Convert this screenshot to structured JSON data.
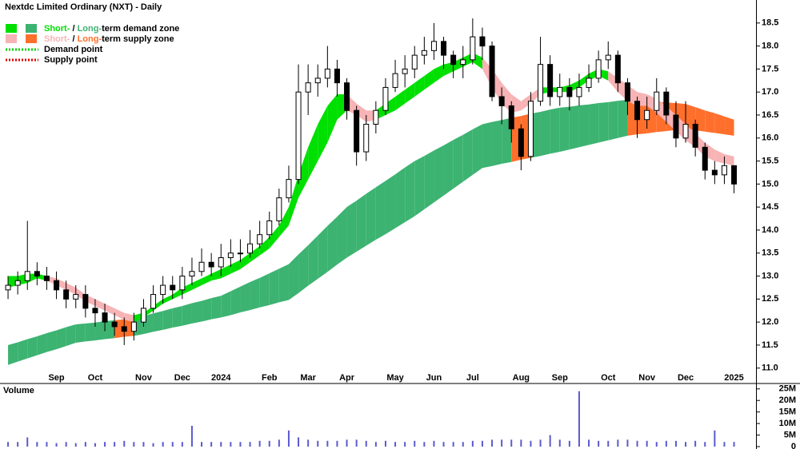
{
  "chart_data": [
    {
      "type": "candlestick",
      "title": "Nextdc Limited Ordinary (NXT) - Daily",
      "categories": [
        null,
        null,
        null,
        null,
        null,
        "Sep",
        null,
        null,
        null,
        "Oct",
        null,
        null,
        null,
        null,
        "Nov",
        null,
        null,
        null,
        "Dec",
        null,
        null,
        null,
        "2024",
        null,
        null,
        null,
        null,
        "Feb",
        null,
        null,
        null,
        "Mar",
        null,
        null,
        null,
        "Apr",
        null,
        null,
        null,
        null,
        "May",
        null,
        null,
        null,
        "Jun",
        null,
        null,
        null,
        "Jul",
        null,
        null,
        null,
        null,
        "Aug",
        null,
        null,
        null,
        "Sep",
        null,
        null,
        null,
        null,
        "Oct",
        null,
        null,
        null,
        "Nov",
        null,
        null,
        null,
        "Dec",
        null,
        null,
        null,
        null,
        "2025"
      ],
      "open": [
        12.7,
        12.8,
        12.9,
        13.1,
        13.0,
        12.9,
        12.7,
        12.5,
        12.6,
        12.3,
        12.2,
        12.0,
        11.9,
        11.8,
        12.0,
        12.3,
        12.6,
        12.8,
        12.7,
        13.0,
        13.1,
        13.3,
        13.2,
        13.4,
        13.5,
        13.5,
        13.7,
        13.9,
        14.2,
        14.7,
        15.1,
        17.0,
        17.2,
        17.3,
        17.5,
        17.2,
        16.6,
        15.7,
        16.3,
        16.6,
        17.1,
        17.4,
        17.5,
        17.8,
        17.9,
        18.1,
        17.8,
        17.6,
        17.7,
        18.2,
        18.0,
        16.9,
        16.7,
        16.2,
        15.6,
        16.8,
        17.6,
        16.9,
        17.1,
        16.9,
        17.1,
        17.3,
        17.7,
        17.8,
        17.2,
        16.8,
        16.4,
        16.6,
        17.0,
        16.5,
        16.0,
        16.3,
        15.8,
        15.3,
        15.2,
        15.4
      ],
      "high": [
        13.0,
        13.1,
        14.2,
        13.3,
        13.2,
        13.1,
        12.9,
        12.8,
        12.8,
        12.5,
        12.4,
        12.2,
        12.1,
        12.2,
        12.5,
        12.8,
        13.0,
        13.0,
        13.2,
        13.4,
        13.6,
        13.5,
        13.7,
        13.8,
        13.8,
        14.0,
        14.2,
        14.4,
        14.9,
        15.4,
        17.6,
        17.6,
        17.6,
        18.0,
        17.7,
        17.3,
        16.7,
        16.5,
        16.8,
        17.3,
        17.7,
        17.8,
        18.0,
        18.2,
        18.5,
        18.2,
        17.9,
        18.0,
        18.6,
        18.4,
        18.1,
        17.1,
        16.8,
        16.3,
        17.0,
        18.2,
        17.8,
        17.4,
        17.3,
        17.4,
        17.6,
        17.9,
        18.1,
        17.9,
        17.3,
        16.9,
        16.9,
        17.3,
        17.1,
        16.8,
        16.8,
        16.4,
        15.9,
        15.5,
        15.6,
        15.4
      ],
      "low": [
        12.5,
        12.6,
        12.7,
        12.8,
        12.7,
        12.5,
        12.3,
        12.3,
        12.1,
        11.9,
        11.8,
        11.7,
        11.5,
        11.6,
        11.9,
        12.2,
        12.4,
        12.5,
        12.5,
        12.8,
        13.0,
        13.0,
        13.0,
        13.2,
        13.3,
        13.4,
        13.6,
        13.8,
        14.1,
        14.6,
        15.0,
        16.5,
        16.9,
        17.1,
        16.9,
        16.4,
        15.4,
        15.5,
        16.1,
        16.5,
        17.0,
        17.1,
        17.3,
        17.6,
        17.7,
        17.5,
        17.3,
        17.3,
        17.6,
        17.7,
        16.8,
        16.3,
        15.9,
        15.3,
        15.5,
        16.7,
        16.7,
        16.7,
        16.6,
        16.7,
        17.0,
        17.2,
        17.5,
        17.0,
        16.5,
        16.0,
        16.2,
        16.5,
        16.3,
        15.8,
        15.9,
        15.6,
        15.1,
        15.0,
        15.0,
        14.8
      ],
      "close": [
        12.8,
        12.9,
        13.1,
        13.0,
        12.9,
        12.7,
        12.5,
        12.6,
        12.3,
        12.2,
        12.0,
        11.9,
        11.8,
        12.0,
        12.3,
        12.6,
        12.8,
        12.7,
        13.0,
        13.1,
        13.3,
        13.2,
        13.4,
        13.5,
        13.5,
        13.7,
        13.9,
        14.2,
        14.7,
        15.1,
        17.0,
        17.2,
        17.3,
        17.5,
        17.2,
        16.6,
        15.7,
        16.3,
        16.6,
        17.1,
        17.4,
        17.5,
        17.8,
        17.9,
        18.1,
        17.8,
        17.6,
        17.7,
        18.2,
        18.0,
        16.9,
        16.7,
        16.2,
        15.6,
        16.8,
        17.6,
        16.9,
        17.1,
        16.9,
        17.1,
        17.3,
        17.7,
        17.8,
        17.2,
        16.8,
        16.4,
        16.6,
        17.0,
        16.5,
        16.0,
        16.3,
        15.8,
        15.3,
        15.2,
        15.4,
        15.0
      ],
      "up_color": "#ffffff",
      "down_color": "#000000",
      "ylim": [
        10.7,
        19.0
      ],
      "yticks": [
        {
          "value": 11,
          "label": "11.0"
        },
        11.5,
        {
          "value": 12,
          "label": "12.0"
        },
        12.5,
        {
          "value": 13,
          "label": "13.0"
        },
        13.5,
        {
          "value": 14,
          "label": "14.0"
        },
        14.5,
        {
          "value": 15,
          "label": "15.0"
        },
        15.5,
        {
          "value": 16,
          "label": "16.0"
        },
        16.5,
        {
          "value": 17,
          "label": "17.0"
        },
        17.5,
        {
          "value": 18,
          "label": "18.0"
        },
        18.5
      ],
      "zones": {
        "long": {
          "demand_color": "#3cb371",
          "supply_color": "#ff6f2c",
          "supply_ranges": [
            [
              11,
              13
            ],
            [
              52,
              54
            ],
            [
              64,
              75
            ]
          ],
          "upper": [
            11.5,
            11.56,
            11.63,
            11.69,
            11.76,
            11.82,
            11.89,
            11.95,
            11.97,
            11.99,
            12.02,
            12.04,
            12.06,
            12.08,
            12.13,
            12.19,
            12.24,
            12.3,
            12.35,
            12.41,
            12.46,
            12.52,
            12.57,
            12.67,
            12.77,
            12.87,
            12.96,
            13.06,
            13.16,
            13.26,
            13.47,
            13.67,
            13.88,
            14.09,
            14.29,
            14.5,
            14.64,
            14.79,
            14.93,
            15.07,
            15.21,
            15.36,
            15.5,
            15.61,
            15.73,
            15.84,
            15.96,
            16.07,
            16.19,
            16.3,
            16.35,
            16.39,
            16.44,
            16.48,
            16.53,
            16.57,
            16.62,
            16.66,
            16.68,
            16.71,
            16.73,
            16.76,
            16.78,
            16.81,
            16.83,
            16.82,
            16.8,
            16.79,
            16.77,
            16.76,
            16.74,
            16.67,
            16.6,
            16.54,
            16.47,
            16.4
          ],
          "lower": [
            11.07,
            11.14,
            11.21,
            11.28,
            11.35,
            11.41,
            11.48,
            11.55,
            11.58,
            11.6,
            11.63,
            11.65,
            11.68,
            11.7,
            11.74,
            11.79,
            11.83,
            11.88,
            11.92,
            11.97,
            12.01,
            12.06,
            12.1,
            12.15,
            12.21,
            12.26,
            12.32,
            12.37,
            12.43,
            12.48,
            12.63,
            12.79,
            12.94,
            13.09,
            13.25,
            13.4,
            13.53,
            13.66,
            13.79,
            13.91,
            14.04,
            14.17,
            14.3,
            14.45,
            14.6,
            14.75,
            14.9,
            15.05,
            15.2,
            15.35,
            15.39,
            15.44,
            15.48,
            15.53,
            15.57,
            15.61,
            15.66,
            15.7,
            15.75,
            15.8,
            15.85,
            15.9,
            15.95,
            16.0,
            16.05,
            16.08,
            16.1,
            16.13,
            16.15,
            16.18,
            16.2,
            16.17,
            16.14,
            16.11,
            16.08,
            16.05
          ]
        },
        "short": {
          "demand_color": "#00e000",
          "supply_color": "#f7b3b5",
          "supply_ranges": [
            [
              4,
              13
            ],
            [
              35,
              38
            ],
            [
              49,
              55
            ],
            [
              62,
              75
            ]
          ],
          "upper": [
            13.0,
            13.0,
            13.05,
            13.05,
            13.0,
            12.95,
            12.85,
            12.75,
            12.6,
            12.5,
            12.4,
            12.3,
            12.2,
            12.15,
            12.2,
            12.35,
            12.5,
            12.6,
            12.75,
            12.85,
            12.95,
            13.05,
            13.15,
            13.25,
            13.35,
            13.5,
            13.65,
            13.85,
            14.1,
            14.5,
            15.2,
            15.8,
            16.3,
            16.7,
            16.95,
            16.95,
            16.75,
            16.6,
            16.6,
            16.75,
            16.9,
            17.05,
            17.2,
            17.35,
            17.5,
            17.6,
            17.65,
            17.75,
            17.85,
            17.75,
            17.5,
            17.2,
            16.95,
            16.8,
            16.95,
            17.1,
            17.1,
            17.1,
            17.15,
            17.25,
            17.4,
            17.5,
            17.45,
            17.3,
            17.15,
            17.0,
            16.95,
            16.85,
            16.7,
            16.5,
            16.3,
            16.1,
            15.9,
            15.75,
            15.65,
            15.6
          ],
          "lower": [
            12.75,
            12.8,
            12.85,
            12.95,
            12.9,
            12.8,
            12.7,
            12.6,
            12.45,
            12.35,
            12.25,
            12.15,
            12.05,
            12.0,
            12.1,
            12.25,
            12.4,
            12.5,
            12.6,
            12.7,
            12.8,
            12.9,
            12.95,
            13.05,
            13.15,
            13.3,
            13.45,
            13.6,
            13.85,
            14.1,
            14.7,
            15.1,
            15.5,
            15.9,
            16.4,
            16.6,
            16.5,
            16.35,
            16.4,
            16.5,
            16.6,
            16.75,
            16.9,
            17.05,
            17.2,
            17.35,
            17.45,
            17.55,
            17.65,
            17.5,
            17.1,
            16.75,
            16.55,
            16.6,
            16.75,
            16.95,
            17.0,
            17.0,
            17.0,
            17.1,
            17.25,
            17.35,
            17.25,
            17.0,
            16.8,
            16.7,
            16.7,
            16.55,
            16.35,
            16.15,
            15.95,
            15.8,
            15.6,
            15.5,
            15.45,
            15.4
          ]
        }
      },
      "legend": {
        "demand_zone": {
          "short": "Short-",
          "sep": " / ",
          "long": "Long-",
          "text": "term demand zone"
        },
        "supply_zone": {
          "short": "Short-",
          "sep": " / ",
          "long": "Long-",
          "text": "term supply zone"
        },
        "demand_point": {
          "text": "Demand point",
          "color": "#00d000"
        },
        "supply_point": {
          "text": "Supply point",
          "color": "#e00000"
        }
      }
    },
    {
      "type": "bar",
      "title": "Volume",
      "title_color": "#5a1e8c",
      "color": "#5a5ad0",
      "values": [
        2,
        2,
        4,
        2,
        2,
        1.5,
        2,
        1.5,
        2,
        1.5,
        2,
        2,
        2.5,
        2,
        2,
        1.5,
        2,
        2,
        2,
        9,
        2,
        2,
        2,
        2,
        2,
        2,
        2.5,
        2.5,
        3,
        7,
        4,
        3,
        2.5,
        2.5,
        2.5,
        3,
        3,
        2.5,
        2,
        2.5,
        2,
        2,
        2.5,
        2,
        2.5,
        2,
        2,
        2,
        2.5,
        2.5,
        3,
        3,
        3,
        3,
        2.5,
        3,
        5,
        3,
        2.5,
        24,
        3,
        2.5,
        2.5,
        3,
        3,
        2.5,
        2.5,
        2,
        2.5,
        2.5,
        2,
        2.5,
        2,
        7,
        2,
        2
      ],
      "ylim": [
        0,
        27
      ],
      "yticks": [
        0,
        {
          "value": 5,
          "label": "5M"
        },
        {
          "value": 10,
          "label": "10M"
        },
        {
          "value": 15,
          "label": "15M"
        },
        {
          "value": 20,
          "label": "20M"
        },
        {
          "value": 25,
          "label": "25M"
        }
      ]
    }
  ]
}
